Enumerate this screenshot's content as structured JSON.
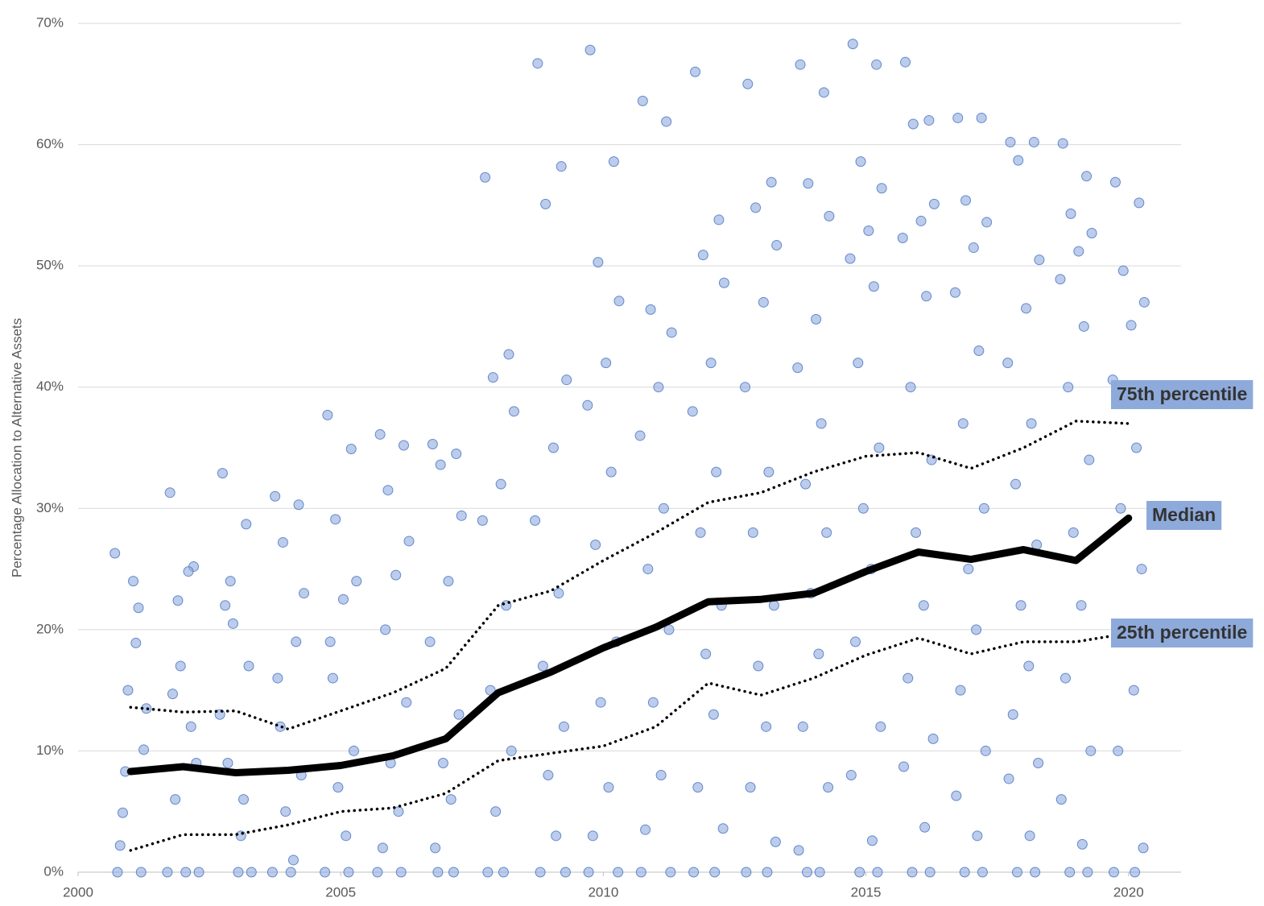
{
  "chart_data": {
    "type": "scatter",
    "y_label": "Percentage Allocation to Alternative Assets",
    "xlim": [
      2000,
      2021
    ],
    "xticks": [
      2000,
      2005,
      2010,
      2015,
      2020
    ],
    "ylim": [
      0,
      70
    ],
    "yticks": [
      {
        "value": 0,
        "label": "0%"
      },
      {
        "value": 10,
        "label": "10%"
      },
      {
        "value": 20,
        "label": "20%"
      },
      {
        "value": 30,
        "label": "30%"
      },
      {
        "value": 40,
        "label": "40%"
      },
      {
        "value": 50,
        "label": "50%"
      },
      {
        "value": 60,
        "label": "60%"
      },
      {
        "value": 70,
        "label": "70%"
      }
    ],
    "grid": true,
    "series": [
      {
        "type": "scatter",
        "color": "#8faadc",
        "x": [
          2000.75,
          2001.2,
          2000.9,
          2001.3,
          2001.05,
          2000.7,
          2001.15,
          2000.85,
          2001.25,
          2000.95,
          2001.1,
          2000.8,
          2001.75,
          2002.2,
          2001.9,
          2002.3,
          2002.05,
          2001.7,
          2002.15,
          2001.85,
          2002.25,
          2001.95,
          2002.1,
          2001.8,
          2002.75,
          2003.2,
          2002.9,
          2003.3,
          2003.05,
          2002.7,
          2003.15,
          2002.85,
          2003.25,
          2002.95,
          2003.1,
          2002.8,
          2003.75,
          2004.2,
          2003.9,
          2004.3,
          2004.05,
          2003.7,
          2004.15,
          2003.85,
          2004.25,
          2003.95,
          2004.1,
          2003.8,
          2004.75,
          2005.2,
          2004.9,
          2005.3,
          2005.05,
          2004.7,
          2005.15,
          2004.85,
          2005.25,
          2004.95,
          2005.1,
          2004.8,
          2005.75,
          2006.2,
          2005.9,
          2006.3,
          2006.05,
          2005.7,
          2006.15,
          2005.85,
          2006.25,
          2005.95,
          2006.1,
          2005.8,
          2006.75,
          2007.2,
          2006.9,
          2007.3,
          2007.05,
          2006.7,
          2007.15,
          2006.85,
          2007.25,
          2006.95,
          2007.1,
          2006.8,
          2007.75,
          2008.2,
          2007.9,
          2008.3,
          2008.05,
          2007.7,
          2008.15,
          2007.85,
          2008.25,
          2007.95,
          2008.1,
          2007.8,
          2008.75,
          2009.2,
          2008.9,
          2009.3,
          2009.05,
          2008.7,
          2009.15,
          2008.85,
          2009.25,
          2008.95,
          2009.1,
          2008.8,
          2009.28,
          2009.75,
          2010.2,
          2009.9,
          2010.3,
          2010.05,
          2009.7,
          2010.15,
          2009.85,
          2010.25,
          2009.95,
          2010.1,
          2009.8,
          2010.28,
          2009.72,
          2010.75,
          2011.2,
          2010.9,
          2011.3,
          2011.05,
          2010.7,
          2011.15,
          2010.85,
          2011.25,
          2010.95,
          2011.1,
          2010.8,
          2011.28,
          2010.72,
          2011.75,
          2012.2,
          2011.9,
          2012.3,
          2012.05,
          2011.7,
          2012.15,
          2011.85,
          2012.25,
          2011.95,
          2012.1,
          2011.8,
          2012.28,
          2011.72,
          2012.12,
          2012.75,
          2013.2,
          2012.9,
          2013.3,
          2013.05,
          2012.7,
          2013.15,
          2012.85,
          2013.25,
          2012.95,
          2013.1,
          2012.8,
          2013.28,
          2012.72,
          2013.12,
          2013.75,
          2014.2,
          2013.9,
          2014.3,
          2014.05,
          2013.7,
          2014.15,
          2013.85,
          2014.25,
          2013.95,
          2014.1,
          2013.8,
          2014.28,
          2013.72,
          2014.12,
          2013.88,
          2014.75,
          2015.2,
          2014.9,
          2015.3,
          2015.05,
          2014.7,
          2015.15,
          2014.85,
          2015.25,
          2014.95,
          2015.1,
          2014.8,
          2015.28,
          2014.72,
          2015.12,
          2014.88,
          2015.22,
          2015.75,
          2016.2,
          2015.9,
          2016.3,
          2016.05,
          2015.7,
          2016.15,
          2015.85,
          2016.25,
          2015.95,
          2016.1,
          2015.8,
          2016.28,
          2015.72,
          2016.12,
          2015.88,
          2016.22,
          2016.75,
          2017.2,
          2016.9,
          2017.3,
          2017.05,
          2016.7,
          2017.15,
          2016.85,
          2017.25,
          2016.95,
          2017.1,
          2016.8,
          2017.28,
          2016.72,
          2017.12,
          2016.88,
          2017.22,
          2017.75,
          2018.2,
          2017.9,
          2018.3,
          2018.05,
          2017.7,
          2018.15,
          2017.85,
          2018.25,
          2017.95,
          2018.1,
          2017.8,
          2018.28,
          2017.72,
          2018.12,
          2017.88,
          2018.22,
          2018.75,
          2019.2,
          2018.9,
          2019.3,
          2019.05,
          2018.7,
          2019.15,
          2018.85,
          2019.25,
          2018.95,
          2019.1,
          2018.8,
          2019.28,
          2018.72,
          2019.12,
          2018.88,
          2019.22,
          2019.75,
          2020.2,
          2019.9,
          2020.3,
          2020.05,
          2019.7,
          2020.15,
          2019.85,
          2020.25,
          2019.95,
          2020.1,
          2019.8,
          2020.28,
          2019.72,
          2020.12
        ],
        "values": [
          0,
          0,
          8.3,
          13.5,
          24,
          26.3,
          21.8,
          4.9,
          10.1,
          15,
          18.9,
          2.2,
          31.3,
          25.2,
          22.4,
          0,
          0,
          0,
          12,
          6,
          9,
          17,
          24.8,
          14.7,
          32.9,
          28.7,
          24,
          0,
          0,
          13,
          6,
          9,
          17,
          20.5,
          3,
          22,
          31,
          30.3,
          27.2,
          23,
          0,
          0,
          19,
          12,
          8,
          5,
          1,
          16,
          37.7,
          34.9,
          29.1,
          24,
          22.5,
          0,
          0,
          16,
          10,
          7,
          3,
          19,
          36.1,
          35.2,
          31.5,
          27.3,
          24.5,
          0,
          0,
          20,
          14,
          9,
          5,
          2,
          35.3,
          34.5,
          33.6,
          29.4,
          24,
          19,
          0,
          0,
          13,
          9,
          6,
          2,
          57.3,
          42.7,
          40.8,
          38,
          32,
          29,
          22,
          15,
          10,
          5,
          0,
          0,
          66.7,
          58.2,
          55.1,
          40.6,
          35,
          29,
          23,
          17,
          12,
          8,
          3,
          0,
          0,
          67.8,
          58.6,
          50.3,
          47.1,
          42,
          38.5,
          33,
          27,
          19,
          14,
          7,
          3,
          0,
          0,
          63.6,
          61.9,
          46.4,
          44.5,
          40,
          36,
          30,
          25,
          20,
          14,
          8,
          3.5,
          0,
          0,
          66,
          53.8,
          50.9,
          48.6,
          42,
          38,
          33,
          28,
          22,
          18,
          13,
          7,
          3.6,
          0,
          0,
          65,
          56.9,
          54.8,
          51.7,
          47,
          40,
          33,
          28,
          22,
          17,
          12,
          7,
          2.5,
          0,
          0,
          66.6,
          64.3,
          56.8,
          54.1,
          45.6,
          41.6,
          37,
          32,
          28,
          23,
          18,
          12,
          7,
          1.8,
          0,
          0,
          68.3,
          66.6,
          58.6,
          56.4,
          52.9,
          50.6,
          48.3,
          42,
          35,
          30,
          25,
          19,
          12,
          8,
          2.6,
          0,
          0,
          66.8,
          62,
          61.7,
          55.1,
          53.7,
          52.3,
          47.5,
          40,
          34,
          28,
          22,
          16,
          11,
          8.7,
          3.7,
          0,
          0,
          62.2,
          62.2,
          55.4,
          53.6,
          51.5,
          47.8,
          43,
          37,
          30,
          25,
          20,
          15,
          10,
          6.3,
          3,
          0,
          0,
          60.2,
          60.2,
          58.7,
          50.5,
          46.5,
          42,
          37,
          32,
          27,
          22,
          17,
          13,
          9,
          7.7,
          3,
          0,
          0,
          60.1,
          57.4,
          54.3,
          52.7,
          51.2,
          48.9,
          45,
          40,
          34,
          28,
          22,
          16,
          10,
          6,
          2.3,
          0,
          0,
          56.9,
          55.2,
          49.6,
          47,
          45.1,
          40.6,
          35,
          30,
          25,
          20,
          15,
          10,
          2,
          0,
          0
        ]
      },
      {
        "type": "line",
        "name": "75th percentile",
        "color": "#000000",
        "dash": "dotted",
        "x": [
          2001,
          2002,
          2003,
          2004,
          2005,
          2006,
          2007,
          2008,
          2009,
          2010,
          2011,
          2012,
          2013,
          2014,
          2015,
          2016,
          2017,
          2018,
          2019,
          2020
        ],
        "values": [
          13.6,
          13.2,
          13.3,
          11.8,
          13.3,
          14.8,
          16.8,
          22,
          23.2,
          25.7,
          28,
          30.5,
          31.3,
          33,
          34.3,
          34.6,
          33.3,
          35,
          37.2,
          37
        ]
      },
      {
        "type": "line",
        "name": "Median",
        "color": "#000000",
        "dash": "solid",
        "x": [
          2001,
          2002,
          2003,
          2004,
          2005,
          2006,
          2007,
          2008,
          2009,
          2010,
          2011,
          2012,
          2013,
          2014,
          2015,
          2016,
          2017,
          2018,
          2019,
          2020
        ],
        "values": [
          8.3,
          8.7,
          8.2,
          8.4,
          8.8,
          9.6,
          11,
          14.8,
          16.5,
          18.5,
          20.2,
          22.3,
          22.5,
          23,
          24.8,
          26.4,
          25.8,
          26.6,
          25.7,
          29.2
        ]
      },
      {
        "type": "line",
        "name": "25th percentile",
        "color": "#000000",
        "dash": "dotted",
        "x": [
          2001,
          2002,
          2003,
          2004,
          2005,
          2006,
          2007,
          2008,
          2009,
          2010,
          2011,
          2012,
          2013,
          2014,
          2015,
          2016,
          2017,
          2018,
          2019,
          2020
        ],
        "values": [
          1.8,
          3.1,
          3.1,
          3.9,
          5,
          5.3,
          6.5,
          9.2,
          9.8,
          10.4,
          12,
          15.6,
          14.6,
          16,
          17.9,
          19.3,
          18,
          19,
          19,
          19.7
        ]
      }
    ]
  }
}
